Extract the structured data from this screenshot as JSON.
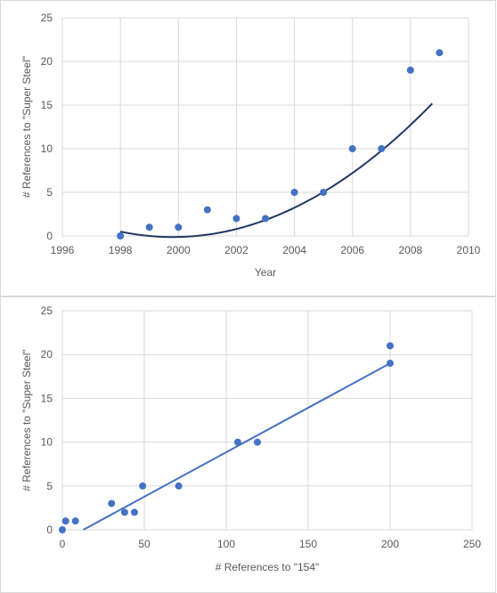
{
  "chart_data": [
    {
      "type": "scatter",
      "title": "",
      "xlabel": "Year",
      "ylabel": "# References to \"Super Steel\"",
      "xlim": [
        1996,
        2010
      ],
      "ylim": [
        0,
        25
      ],
      "xticks": [
        1996,
        1998,
        2000,
        2002,
        2004,
        2006,
        2008,
        2010
      ],
      "yticks": [
        0,
        5,
        10,
        15,
        20,
        25
      ],
      "grid": true,
      "legend": "none",
      "colors": {
        "points": "#4472c4",
        "trendline": "#1f3864"
      },
      "trendline": {
        "type": "polynomial",
        "coefficients": [
          0.1913,
          -0.6913,
          0.5
        ]
      },
      "series": [
        {
          "x": [
            1998,
            1999,
            2000,
            2001,
            2002,
            2003,
            2004,
            2005,
            2006,
            2007,
            2008,
            2009
          ],
          "y": [
            0,
            1,
            1,
            3,
            2,
            2,
            5,
            5,
            10,
            10,
            19,
            21
          ]
        }
      ]
    },
    {
      "type": "scatter",
      "title": "",
      "xlabel": "# References to \"154\"",
      "ylabel": "# References to \"Super Steel\"",
      "xlim": [
        0,
        250
      ],
      "ylim": [
        0,
        25
      ],
      "xticks": [
        0,
        50,
        100,
        150,
        200,
        250
      ],
      "yticks": [
        0,
        5,
        10,
        15,
        20,
        25
      ],
      "grid": true,
      "legend": "none",
      "colors": {
        "points": "#4472c4",
        "trendline": "#4472c4"
      },
      "trendline": {
        "type": "linear",
        "slope": 0.1015,
        "intercept": -1.3
      },
      "series": [
        {
          "x": [
            0,
            2,
            8,
            30,
            38,
            44,
            49,
            71,
            107,
            119,
            200,
            200
          ],
          "y": [
            0,
            1,
            1,
            3,
            2,
            2,
            5,
            5,
            10,
            10,
            21,
            19
          ]
        }
      ]
    }
  ]
}
